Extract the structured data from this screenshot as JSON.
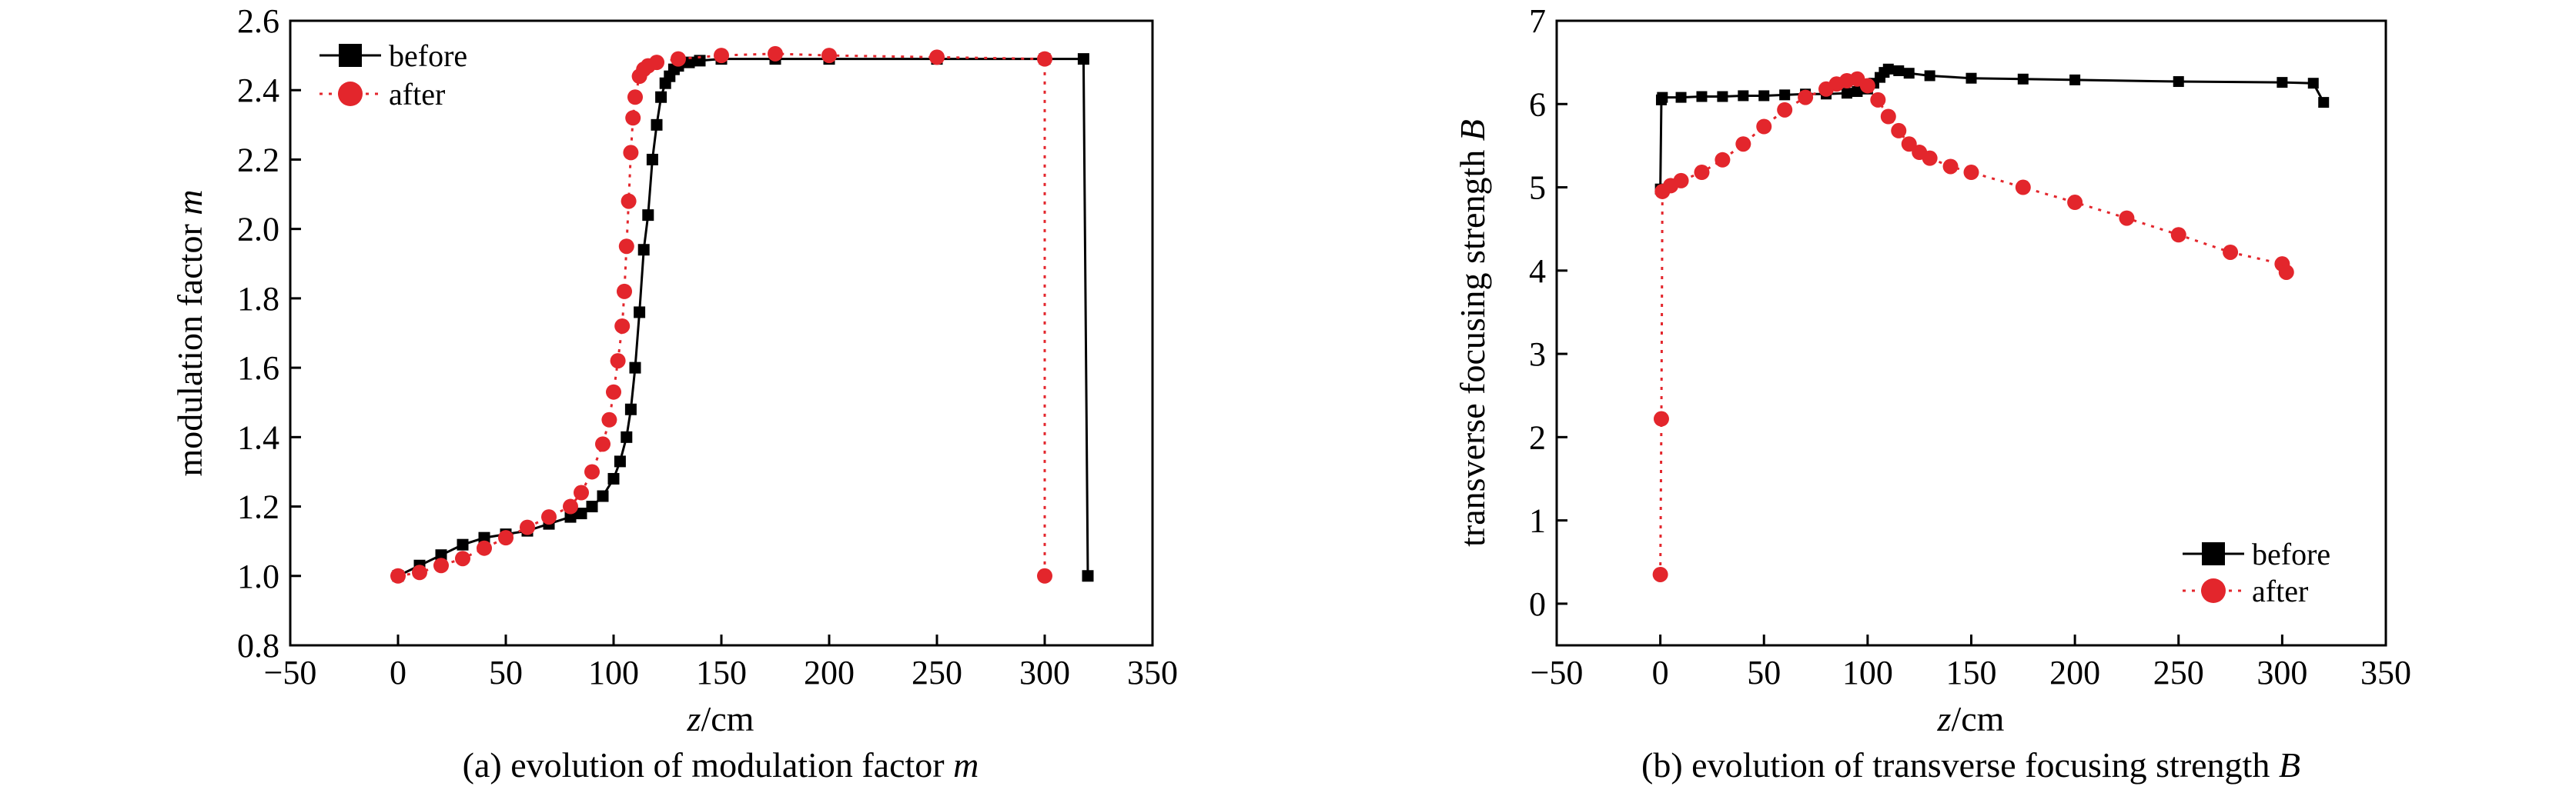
{
  "chart_data": [
    {
      "type": "line",
      "caption": "(a) evolution of modulation factor m",
      "caption_main": "(a) evolution of modulation factor ",
      "caption_var": "m",
      "xlabel_var": "z",
      "xlabel_unit": "/cm",
      "ylabel_main": "modulation factor ",
      "ylabel_var": "m",
      "xlim": [
        -50,
        350
      ],
      "ylim": [
        0.8,
        2.6
      ],
      "xticks": [
        "−50",
        "0",
        "50",
        "100",
        "150",
        "200",
        "250",
        "300",
        "350"
      ],
      "xtick_values": [
        -50,
        0,
        50,
        100,
        150,
        200,
        250,
        300,
        350
      ],
      "yticks": [
        "0.8",
        "1.0",
        "1.2",
        "1.4",
        "1.6",
        "1.8",
        "2.0",
        "2.2",
        "2.4",
        "2.6"
      ],
      "ytick_values": [
        0.8,
        1.0,
        1.2,
        1.4,
        1.6,
        1.8,
        2.0,
        2.2,
        2.4,
        2.6
      ],
      "legend_position": "top-left",
      "series": [
        {
          "name": "before",
          "color": "#000000",
          "marker": "square",
          "linestyle": "solid",
          "x": [
            0,
            10,
            20,
            30,
            40,
            50,
            60,
            70,
            80,
            85,
            90,
            95,
            100,
            103,
            106,
            108,
            110,
            112,
            114,
            116,
            118,
            120,
            122,
            124,
            126,
            128,
            130,
            135,
            140,
            150,
            175,
            200,
            250,
            300,
            318,
            320
          ],
          "y": [
            1.0,
            1.03,
            1.06,
            1.09,
            1.11,
            1.12,
            1.13,
            1.15,
            1.17,
            1.18,
            1.2,
            1.23,
            1.28,
            1.33,
            1.4,
            1.48,
            1.6,
            1.76,
            1.94,
            2.04,
            2.2,
            2.3,
            2.38,
            2.42,
            2.44,
            2.46,
            2.47,
            2.48,
            2.485,
            2.49,
            2.49,
            2.49,
            2.49,
            2.49,
            2.49,
            1.0
          ]
        },
        {
          "name": "after",
          "color": "#e3262c",
          "marker": "circle",
          "linestyle": "dotted",
          "x": [
            0,
            10,
            20,
            30,
            40,
            50,
            60,
            70,
            80,
            85,
            90,
            95,
            98,
            100,
            102,
            104,
            105,
            106,
            107,
            108,
            109,
            110,
            112,
            114,
            116,
            120,
            130,
            150,
            175,
            200,
            250,
            300,
            300
          ],
          "y": [
            1.0,
            1.01,
            1.03,
            1.05,
            1.08,
            1.11,
            1.14,
            1.17,
            1.2,
            1.24,
            1.3,
            1.38,
            1.45,
            1.53,
            1.62,
            1.72,
            1.82,
            1.95,
            2.08,
            2.22,
            2.32,
            2.38,
            2.44,
            2.46,
            2.47,
            2.48,
            2.49,
            2.5,
            2.505,
            2.5,
            2.495,
            2.49,
            1.0
          ]
        }
      ]
    },
    {
      "type": "line",
      "caption": "(b) evolution of transverse focusing strength B",
      "caption_main": "(b) evolution of transverse focusing strength ",
      "caption_var": "B",
      "xlabel_var": "z",
      "xlabel_unit": "/cm",
      "ylabel_main": "transverse focusing strength ",
      "ylabel_var": "B",
      "xlim": [
        -50,
        350
      ],
      "ylim": [
        -0.5,
        7
      ],
      "xticks": [
        "−50",
        "0",
        "50",
        "100",
        "150",
        "200",
        "250",
        "300",
        "350"
      ],
      "xtick_values": [
        -50,
        0,
        50,
        100,
        150,
        200,
        250,
        300,
        350
      ],
      "yticks": [
        "0",
        "1",
        "2",
        "3",
        "4",
        "5",
        "6",
        "7"
      ],
      "ytick_values": [
        0,
        1,
        2,
        3,
        4,
        5,
        6,
        7
      ],
      "legend_position": "bottom-right",
      "series": [
        {
          "name": "before",
          "color": "#000000",
          "marker": "square",
          "linestyle": "solid",
          "x": [
            0,
            0.5,
            1,
            10,
            20,
            30,
            40,
            50,
            60,
            70,
            80,
            90,
            95,
            100,
            103,
            106,
            108,
            110,
            115,
            120,
            130,
            150,
            175,
            200,
            250,
            300,
            315,
            320
          ],
          "y": [
            4.98,
            6.05,
            6.08,
            6.08,
            6.09,
            6.09,
            6.1,
            6.1,
            6.11,
            6.12,
            6.12,
            6.13,
            6.15,
            6.18,
            6.25,
            6.32,
            6.38,
            6.42,
            6.4,
            6.37,
            6.34,
            6.31,
            6.3,
            6.29,
            6.27,
            6.26,
            6.25,
            6.02
          ]
        },
        {
          "name": "after",
          "color": "#e3262c",
          "marker": "circle",
          "linestyle": "dotted",
          "x": [
            0,
            0.5,
            1,
            5,
            10,
            20,
            30,
            40,
            50,
            60,
            70,
            80,
            85,
            90,
            95,
            100,
            105,
            110,
            115,
            120,
            125,
            130,
            140,
            150,
            175,
            200,
            225,
            250,
            275,
            300,
            302
          ],
          "y": [
            0.35,
            2.22,
            4.95,
            5.02,
            5.08,
            5.18,
            5.33,
            5.52,
            5.73,
            5.93,
            6.08,
            6.18,
            6.24,
            6.28,
            6.3,
            6.22,
            6.05,
            5.85,
            5.68,
            5.52,
            5.42,
            5.35,
            5.25,
            5.18,
            5.0,
            4.82,
            4.63,
            4.43,
            4.22,
            4.08,
            3.98
          ]
        }
      ]
    }
  ]
}
